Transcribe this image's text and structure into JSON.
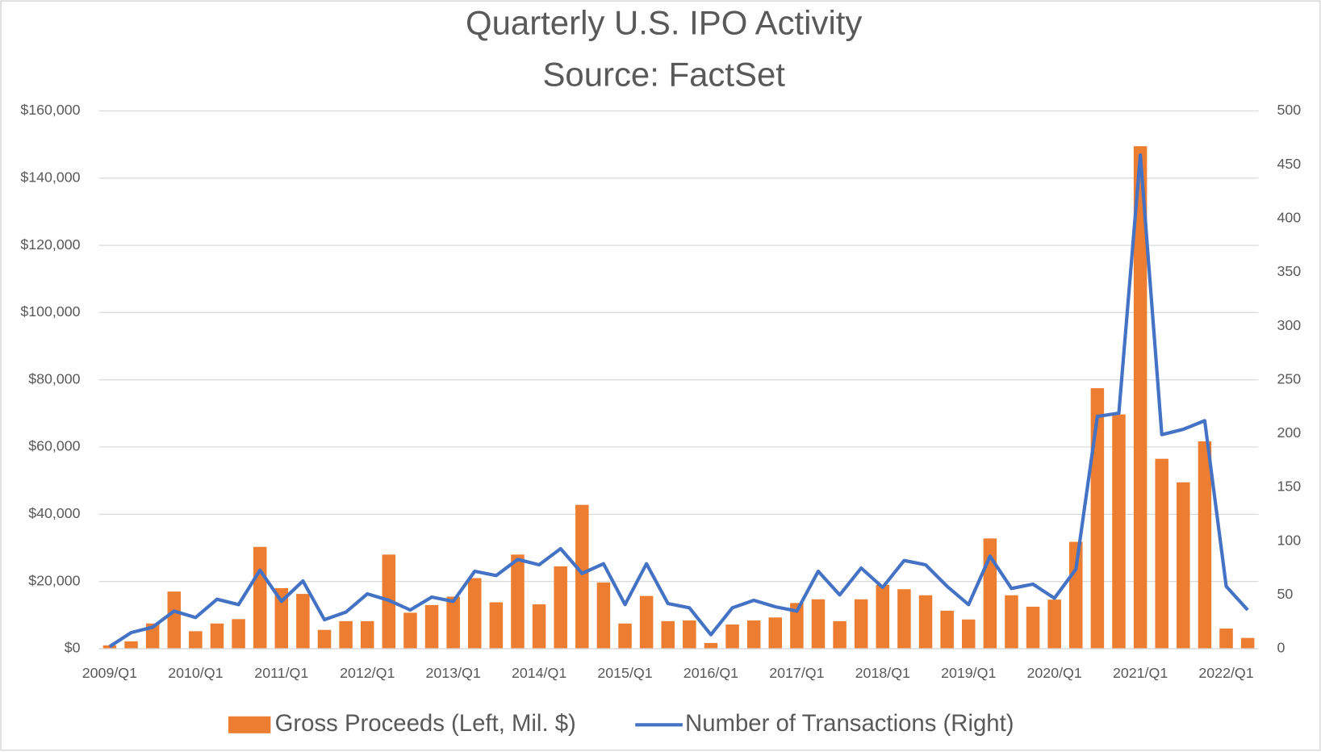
{
  "chart_data": {
    "type": "bar-line",
    "title": "Quarterly U.S. IPO Activity",
    "subtitle": "Source: FactSet",
    "categories": [
      "2009/Q1",
      null,
      null,
      null,
      "2010/Q1",
      null,
      null,
      null,
      "2011/Q1",
      null,
      null,
      null,
      "2012/Q1",
      null,
      null,
      null,
      "2013/Q1",
      null,
      null,
      null,
      "2014/Q1",
      null,
      null,
      null,
      "2015/Q1",
      null,
      null,
      null,
      "2016/Q1",
      null,
      null,
      null,
      "2017/Q1",
      null,
      null,
      null,
      "2018/Q1",
      null,
      null,
      null,
      "2019/Q1",
      null,
      null,
      null,
      "2020/Q1",
      null,
      null,
      null,
      "2021/Q1",
      null,
      null,
      null,
      "2022/Q1",
      null
    ],
    "series": [
      {
        "name": "Gross Proceeds (Left, Mil. $)",
        "type": "bar",
        "color": "#ED7D31",
        "axis": "y",
        "values": [
          1000,
          2200,
          7500,
          17000,
          5200,
          7500,
          8800,
          30300,
          18000,
          16300,
          5600,
          8200,
          8200,
          28000,
          10700,
          13000,
          15500,
          21000,
          13800,
          28000,
          13200,
          24500,
          42800,
          19700,
          7500,
          15700,
          8200,
          8400,
          1700,
          7200,
          8400,
          9300,
          13600,
          14700,
          8200,
          14700,
          19000,
          17700,
          15900,
          11300,
          8700,
          32800,
          15900,
          12500,
          14600,
          31800,
          77500,
          69700,
          149500,
          56500,
          49500,
          61700,
          6000,
          3200
        ]
      },
      {
        "name": "Number of Transactions (Right)",
        "type": "line",
        "color": "#4472C4",
        "axis": "y2",
        "values": [
          2,
          15,
          20,
          35,
          29,
          46,
          41,
          73,
          44,
          63,
          27,
          34,
          51,
          45,
          36,
          48,
          44,
          72,
          68,
          83,
          78,
          93,
          70,
          79,
          41,
          79,
          42,
          38,
          13,
          38,
          45,
          39,
          35,
          72,
          50,
          75,
          57,
          82,
          78,
          58,
          41,
          86,
          56,
          60,
          47,
          74,
          216,
          219,
          459,
          199,
          204,
          212,
          58,
          36
        ]
      }
    ],
    "ylim": [
      0,
      160000
    ],
    "yticks": [
      {
        "value": 0,
        "label": "$0"
      },
      {
        "value": 20000,
        "label": "$20,000"
      },
      {
        "value": 40000,
        "label": "$40,000"
      },
      {
        "value": 60000,
        "label": "$60,000"
      },
      {
        "value": 80000,
        "label": "$80,000"
      },
      {
        "value": 100000,
        "label": "$100,000"
      },
      {
        "value": 120000,
        "label": "$120,000"
      },
      {
        "value": 140000,
        "label": "$140,000"
      },
      {
        "value": 160000,
        "label": "$160,000"
      }
    ],
    "y2lim": [
      0,
      500
    ],
    "y2ticks": [
      0,
      50,
      100,
      150,
      200,
      250,
      300,
      350,
      400,
      450,
      500
    ],
    "grid": true,
    "legend": "bottom"
  }
}
